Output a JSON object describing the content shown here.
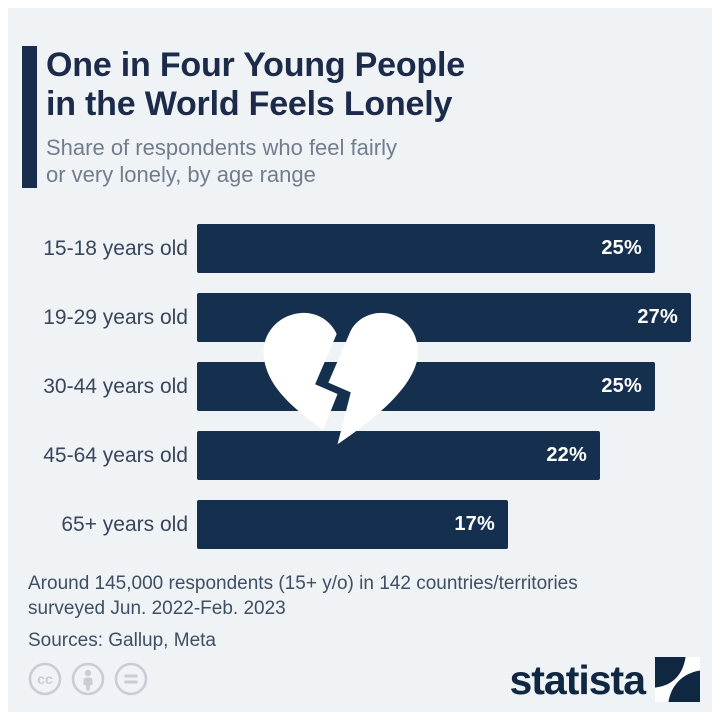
{
  "header": {
    "title_line1": "One in Four Young People",
    "title_line2": "in the World Feels Lonely",
    "subtitle_line1": "Share of respondents who feel fairly",
    "subtitle_line2": "or very lonely, by age range"
  },
  "chart_data": {
    "type": "bar",
    "orientation": "horizontal",
    "title": "One in Four Young People in the World Feels Lonely",
    "subtitle": "Share of respondents who feel fairly or very lonely, by age range",
    "categories": [
      "15-18 years old",
      "19-29 years old",
      "30-44 years old",
      "45-64 years old",
      "65+ years old"
    ],
    "values": [
      25,
      27,
      25,
      22,
      17
    ],
    "value_labels": [
      "25%",
      "27%",
      "25%",
      "22%",
      "17%"
    ],
    "unit": "%",
    "xlim": [
      0,
      28
    ],
    "grid": false,
    "legend": false,
    "bar_color": "#14304e",
    "value_label_color": "#ffffff",
    "annotation_icon": "broken-heart"
  },
  "footer": {
    "note_line1": "Around 145,000 respondents (15+ y/o) in 142 countries/territories",
    "note_line2": "surveyed Jun. 2022-Feb. 2023",
    "sources": "Sources: Gallup, Meta",
    "license_icons": [
      "cc",
      "attribution",
      "no-derivatives"
    ],
    "brand": "statista"
  },
  "colors": {
    "accent": "#1b2d4f",
    "title": "#1c2b49",
    "subtitle_gray": "#727d8c",
    "background": "#f0f3f6",
    "frame": "#ffffff",
    "bar": "#14304e",
    "license_gray": "#c8ccd3",
    "brand_navy": "#0f2741"
  }
}
